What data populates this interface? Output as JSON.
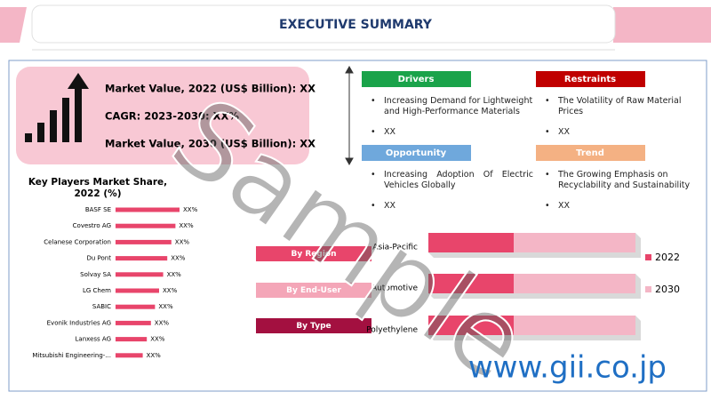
{
  "header": {
    "title": "EXECUTIVE SUMMARY"
  },
  "market": {
    "lines": [
      "Market Value, 2022 (US$ Billion): XX",
      "CAGR: 2023-2030: XX%",
      "Market Value, 2030 (US$ Billion): XX"
    ]
  },
  "key_players": {
    "title": [
      "Key Players Market Share,",
      "2022 (%)"
    ],
    "players": [
      {
        "name": "BASF SE",
        "label": "XX%"
      },
      {
        "name": "Covestro AG",
        "label": "XX%"
      },
      {
        "name": "Celanese Corporation",
        "label": "XX%"
      },
      {
        "name": "Du Pont",
        "label": "XX%"
      },
      {
        "name": "Solvay SA",
        "label": "XX%"
      },
      {
        "name": "LG Chem",
        "label": "XX%"
      },
      {
        "name": "SABIC",
        "label": "XX%"
      },
      {
        "name": "Evonik Industries AG",
        "label": "XX%"
      },
      {
        "name": "Lanxess AG",
        "label": "XX%"
      },
      {
        "name": "Mitsubishi Engineering-...",
        "label": "XX%"
      }
    ]
  },
  "panels": [
    {
      "title": "Drivers",
      "items": [
        "Increasing Demand for Lightweight and High-Performance Materials",
        "XX"
      ]
    },
    {
      "title": "Restraints",
      "items": [
        "The Volatility of Raw Material Prices",
        "XX"
      ]
    },
    {
      "title": "Opportunity",
      "items": [
        "Increasing Adoption Of Electric Vehicles Globally",
        "XX"
      ]
    },
    {
      "title": "Trend",
      "items": [
        "The Growing Emphasis on Recyclability and Sustainability",
        "XX"
      ]
    }
  ],
  "segments": {
    "buttons": [
      "By Region",
      "By End-User",
      "By Type"
    ],
    "bars": [
      "Asia-Pacific",
      "Automotive",
      "Polyethylene"
    ],
    "legend": [
      "2022",
      "2030"
    ]
  },
  "watermark": "Sample",
  "url": "www.gii.co.jp"
}
